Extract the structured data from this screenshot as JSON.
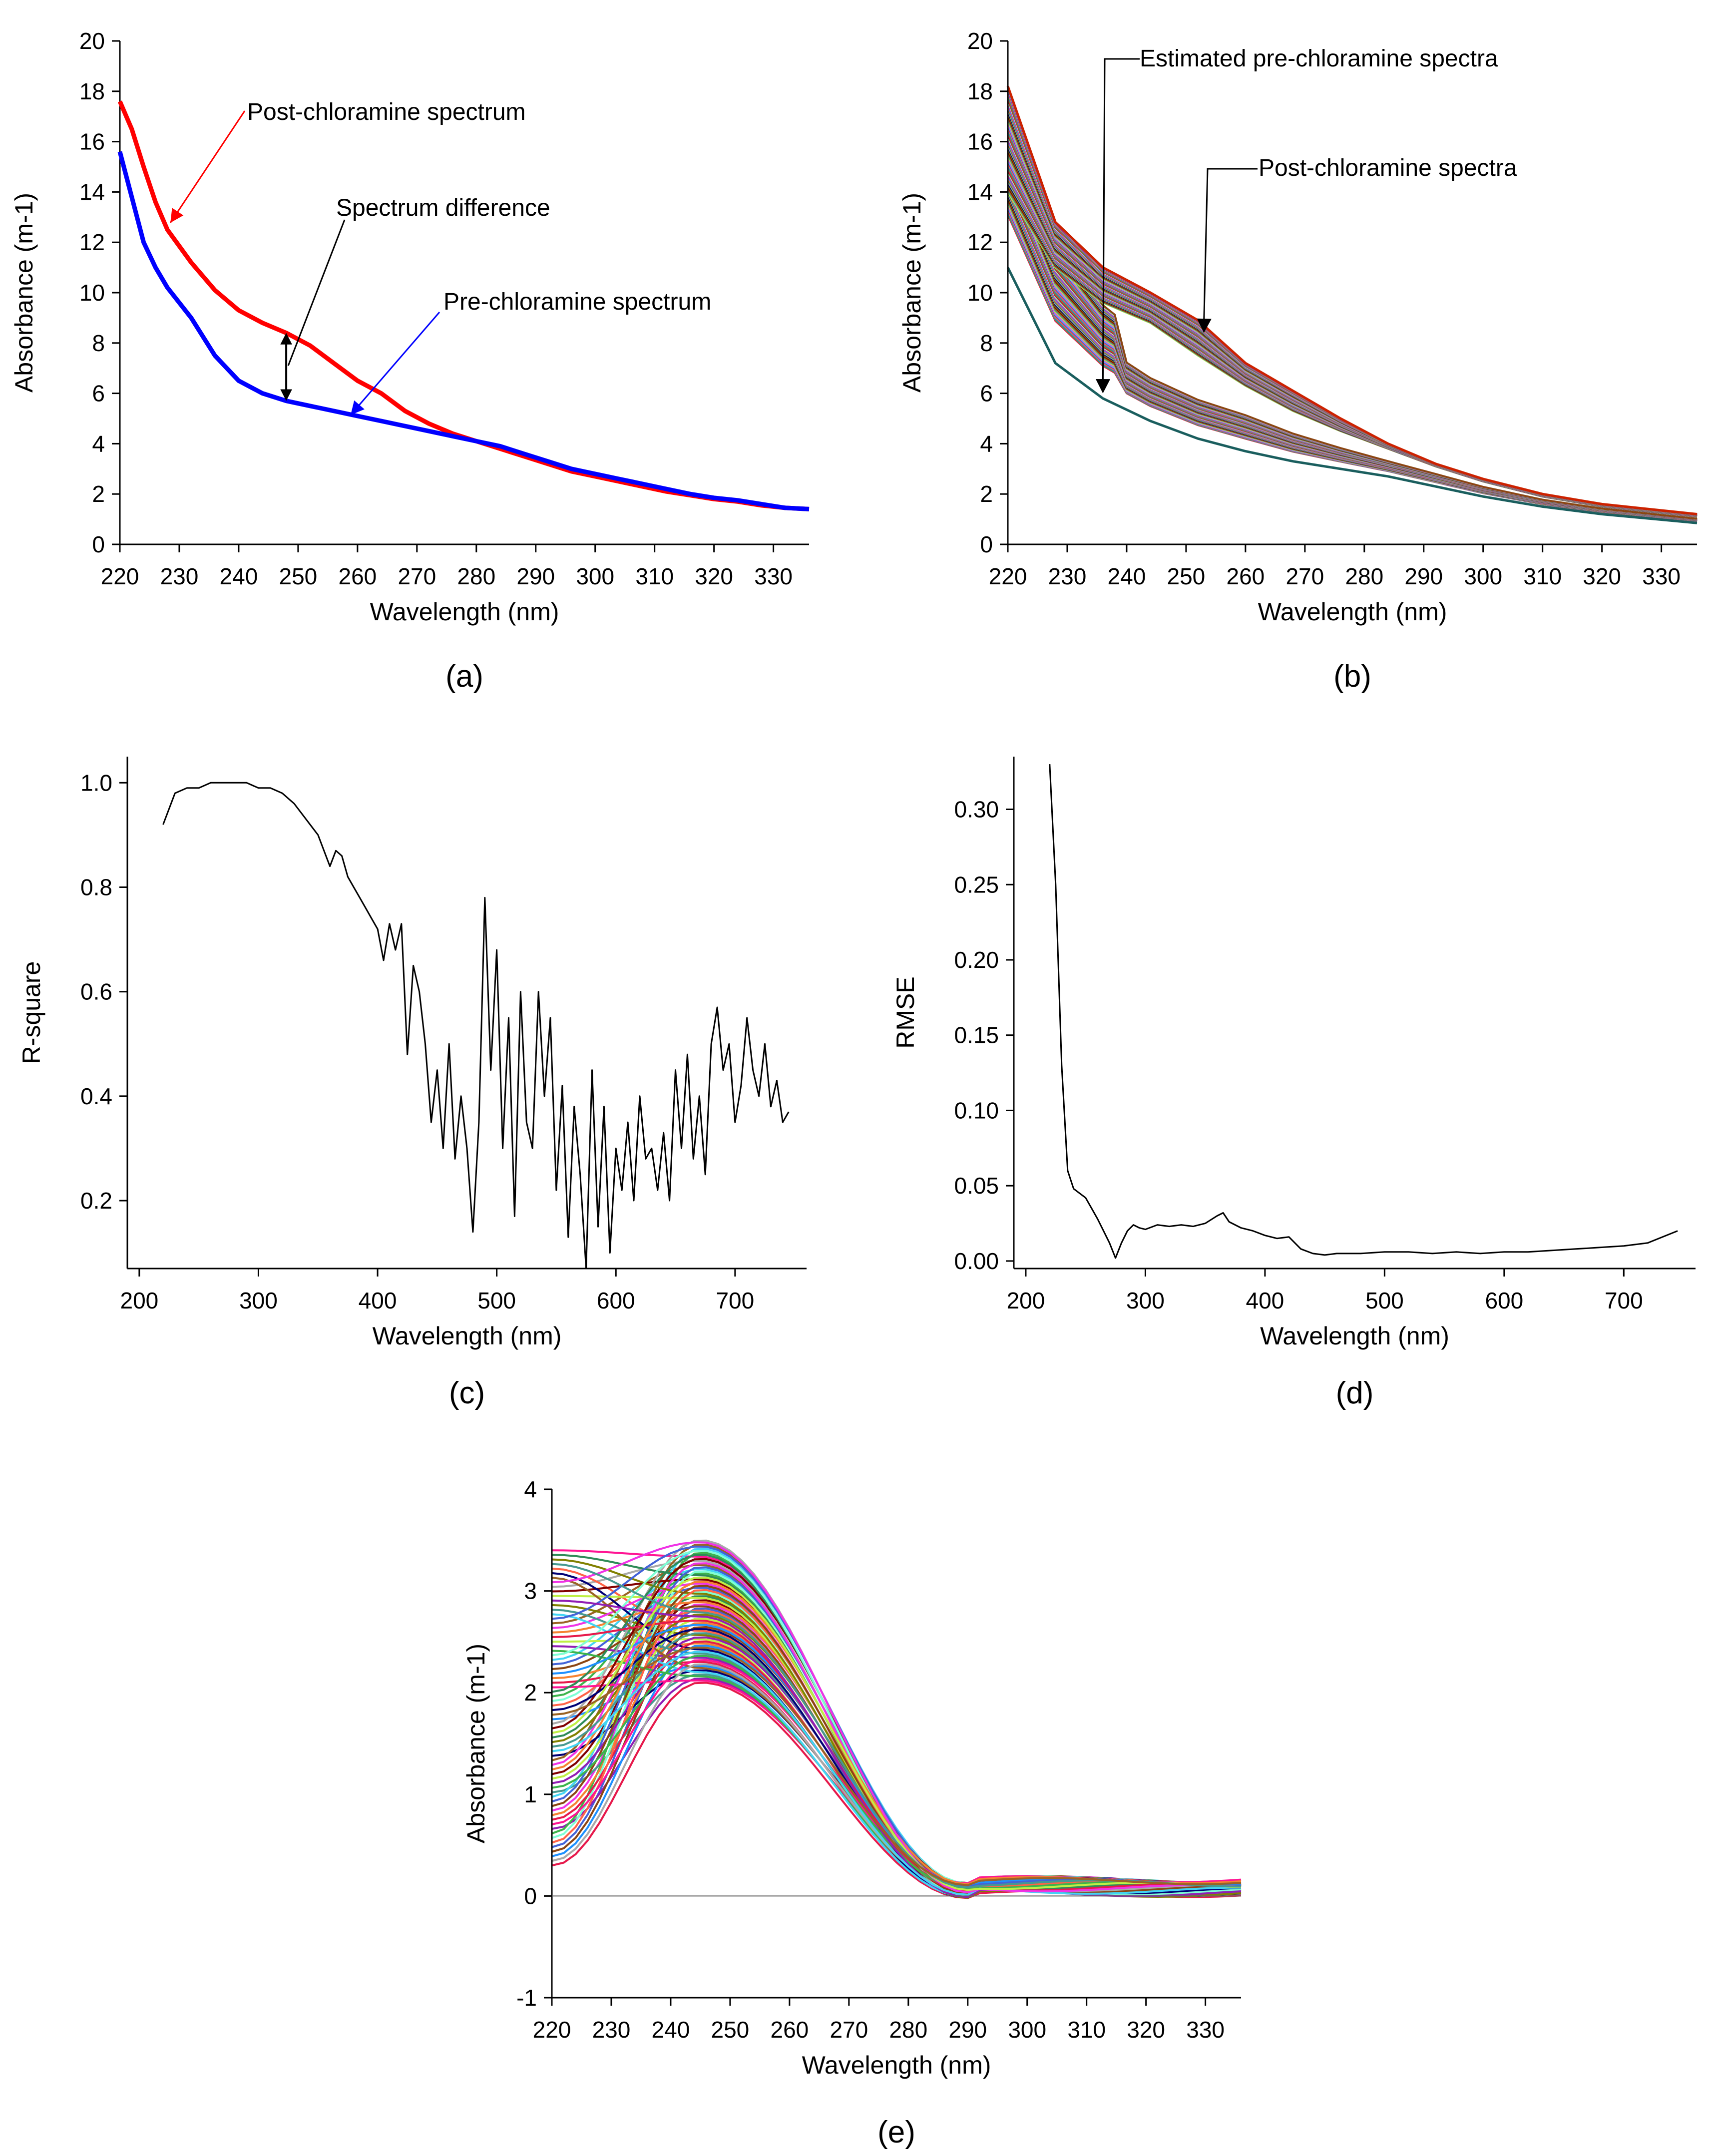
{
  "colors": {
    "post": "#ff0000",
    "pre": "#0000ff",
    "line": "#000000",
    "ann_post": "#ff0000",
    "ann_pre": "#0000ff",
    "palette": [
      "#e6194b",
      "#3cb44b",
      "#4363d8",
      "#f58231",
      "#911eb4",
      "#42d4f4",
      "#f032e6",
      "#bfef45",
      "#469990",
      "#9a6324",
      "#800000",
      "#808000",
      "#000075",
      "#a9a9a9",
      "#2e8b57",
      "#ff6347",
      "#1e90ff",
      "#ff1493",
      "#7fffd4",
      "#8b4513"
    ]
  },
  "chart_data": [
    {
      "id": "a",
      "type": "line",
      "caption": "(a)",
      "xlabel": "Wavelength (nm)",
      "ylabel": "Absorbance (m-1)",
      "xlim": [
        220,
        336
      ],
      "ylim": [
        0,
        20
      ],
      "xticks": [
        220,
        230,
        240,
        250,
        260,
        270,
        280,
        290,
        300,
        310,
        320,
        330
      ],
      "yticks": [
        0,
        2,
        4,
        6,
        8,
        10,
        12,
        14,
        16,
        18,
        20
      ],
      "series": [
        {
          "name": "Post-chloramine spectrum",
          "color": "post",
          "x": [
            220,
            222,
            224,
            226,
            228,
            232,
            236,
            240,
            244,
            248,
            252,
            256,
            260,
            264,
            268,
            272,
            276,
            280,
            284,
            288,
            292,
            296,
            300,
            304,
            308,
            312,
            316,
            320,
            324,
            328,
            332,
            336
          ],
          "y": [
            17.6,
            16.5,
            15.0,
            13.6,
            12.5,
            11.2,
            10.1,
            9.3,
            8.8,
            8.4,
            7.9,
            7.2,
            6.5,
            6.0,
            5.3,
            4.8,
            4.4,
            4.1,
            3.8,
            3.5,
            3.2,
            2.9,
            2.7,
            2.5,
            2.3,
            2.1,
            1.95,
            1.8,
            1.7,
            1.55,
            1.45,
            1.4
          ]
        },
        {
          "name": "Pre-chloramine spectrum",
          "color": "pre",
          "x": [
            220,
            222,
            224,
            226,
            228,
            232,
            236,
            240,
            244,
            248,
            252,
            256,
            260,
            264,
            268,
            272,
            276,
            280,
            284,
            288,
            292,
            296,
            300,
            304,
            308,
            312,
            316,
            320,
            324,
            328,
            332,
            336
          ],
          "y": [
            15.6,
            13.8,
            12.0,
            11.0,
            10.2,
            9.0,
            7.5,
            6.5,
            6.0,
            5.7,
            5.5,
            5.3,
            5.1,
            4.9,
            4.7,
            4.5,
            4.3,
            4.1,
            3.9,
            3.6,
            3.3,
            3.0,
            2.8,
            2.6,
            2.4,
            2.2,
            2.0,
            1.85,
            1.75,
            1.6,
            1.45,
            1.4
          ]
        }
      ],
      "annotations": [
        {
          "text": "Post-chloramine spectrum",
          "target": [
            228,
            12.5
          ],
          "color": "ann_post"
        },
        {
          "text": "Spectrum difference",
          "target": [
            248,
            7.1
          ],
          "color": "line"
        },
        {
          "text": "Pre-chloramine spectrum",
          "target": [
            258,
            5.3
          ],
          "color": "ann_pre"
        }
      ]
    },
    {
      "id": "b",
      "type": "line",
      "caption": "(b)",
      "xlabel": "Wavelength (nm)",
      "ylabel": "Absorbance (m-1)",
      "xlim": [
        220,
        336
      ],
      "ylim": [
        0,
        20
      ],
      "xticks": [
        220,
        230,
        240,
        250,
        260,
        270,
        280,
        290,
        300,
        310,
        320,
        330
      ],
      "yticks": [
        0,
        2,
        4,
        6,
        8,
        10,
        12,
        14,
        16,
        18,
        20
      ],
      "band_x": [
        220,
        228,
        236,
        244,
        252,
        260,
        268,
        276,
        284,
        292,
        300,
        310,
        320,
        336
      ],
      "post_band_low": [
        14.0,
        11.0,
        9.6,
        8.8,
        7.5,
        6.3,
        5.3,
        4.5,
        3.8,
        3.1,
        2.5,
        1.9,
        1.5,
        1.1
      ],
      "post_band_high": [
        18.2,
        12.8,
        11.0,
        10.0,
        8.9,
        7.2,
        6.1,
        5.0,
        4.0,
        3.2,
        2.6,
        2.0,
        1.6,
        1.2
      ],
      "pre_band_low": [
        11.0,
        7.2,
        5.8,
        4.9,
        4.2,
        3.7,
        3.3,
        3.0,
        2.7,
        2.3,
        1.9,
        1.5,
        1.2,
        0.85
      ],
      "pre_band_high": [
        17.0,
        12.0,
        9.5,
        8.0,
        7.0,
        6.3,
        5.3,
        4.5,
        3.8,
        3.2,
        2.6,
        2.0,
        1.6,
        1.15
      ],
      "series_count": 60,
      "annotations": [
        {
          "text": "Estimated pre-chloramine spectra",
          "target": [
            236,
            6.0
          ]
        },
        {
          "text": "Post-chloramine spectra",
          "target": [
            253,
            8.4
          ]
        }
      ]
    },
    {
      "id": "c",
      "type": "line",
      "caption": "(c)",
      "xlabel": "Wavelength (nm)",
      "ylabel": "R-square",
      "xlim": [
        190,
        760
      ],
      "ylim": [
        0.07,
        1.05
      ],
      "xticks": [
        200,
        300,
        400,
        500,
        600,
        700
      ],
      "yticks": [
        0.2,
        0.4,
        0.6,
        0.8,
        1.0
      ],
      "ytick_labels": [
        "0.2",
        "0.4",
        "0.6",
        "0.8",
        "1.0"
      ],
      "series": [
        {
          "name": "R-square",
          "color": "line",
          "x": [
            220,
            230,
            240,
            250,
            260,
            270,
            280,
            290,
            300,
            310,
            320,
            330,
            340,
            350,
            360,
            365,
            370,
            375,
            380,
            385,
            390,
            395,
            400,
            405,
            410,
            415,
            420,
            425,
            430,
            435,
            440,
            445,
            450,
            455,
            460,
            465,
            470,
            475,
            480,
            485,
            490,
            495,
            500,
            505,
            510,
            515,
            520,
            525,
            530,
            535,
            540,
            545,
            550,
            555,
            560,
            565,
            570,
            575,
            580,
            585,
            590,
            595,
            600,
            605,
            610,
            615,
            620,
            625,
            630,
            635,
            640,
            645,
            650,
            655,
            660,
            665,
            670,
            675,
            680,
            685,
            690,
            695,
            700,
            705,
            710,
            715,
            720,
            725,
            730,
            735,
            740,
            745
          ],
          "y": [
            0.92,
            0.98,
            0.99,
            0.99,
            1.0,
            1.0,
            1.0,
            1.0,
            0.99,
            0.99,
            0.98,
            0.96,
            0.93,
            0.9,
            0.84,
            0.87,
            0.86,
            0.82,
            0.8,
            0.78,
            0.76,
            0.74,
            0.72,
            0.66,
            0.73,
            0.68,
            0.73,
            0.48,
            0.65,
            0.6,
            0.5,
            0.35,
            0.45,
            0.3,
            0.5,
            0.28,
            0.4,
            0.3,
            0.14,
            0.35,
            0.78,
            0.45,
            0.68,
            0.3,
            0.55,
            0.17,
            0.6,
            0.35,
            0.3,
            0.6,
            0.4,
            0.55,
            0.22,
            0.42,
            0.13,
            0.38,
            0.25,
            0.07,
            0.45,
            0.15,
            0.38,
            0.1,
            0.3,
            0.22,
            0.35,
            0.2,
            0.4,
            0.28,
            0.3,
            0.22,
            0.33,
            0.2,
            0.45,
            0.3,
            0.48,
            0.28,
            0.4,
            0.25,
            0.5,
            0.57,
            0.45,
            0.5,
            0.35,
            0.42,
            0.55,
            0.45,
            0.4,
            0.5,
            0.38,
            0.43,
            0.35,
            0.37
          ]
        }
      ]
    },
    {
      "id": "d",
      "type": "line",
      "caption": "(d)",
      "xlabel": "Wavelength (nm)",
      "ylabel": "RMSE",
      "xlim": [
        190,
        760
      ],
      "ylim": [
        -0.005,
        0.335
      ],
      "xticks": [
        200,
        300,
        400,
        500,
        600,
        700
      ],
      "yticks": [
        0.0,
        0.05,
        0.1,
        0.15,
        0.2,
        0.25,
        0.3
      ],
      "ytick_labels": [
        "0.00",
        "0.05",
        "0.10",
        "0.15",
        "0.20",
        "0.25",
        "0.30"
      ],
      "series": [
        {
          "name": "RMSE",
          "color": "line",
          "x": [
            220,
            225,
            230,
            235,
            240,
            245,
            250,
            255,
            260,
            265,
            270,
            275,
            280,
            285,
            290,
            295,
            300,
            310,
            320,
            330,
            340,
            350,
            360,
            365,
            370,
            380,
            390,
            400,
            410,
            420,
            430,
            440,
            450,
            460,
            480,
            500,
            520,
            540,
            560,
            580,
            600,
            620,
            640,
            660,
            680,
            700,
            720,
            745
          ],
          "y": [
            0.33,
            0.25,
            0.13,
            0.06,
            0.048,
            0.045,
            0.042,
            0.035,
            0.028,
            0.02,
            0.012,
            0.002,
            0.012,
            0.02,
            0.024,
            0.022,
            0.021,
            0.024,
            0.023,
            0.024,
            0.023,
            0.025,
            0.03,
            0.032,
            0.026,
            0.022,
            0.02,
            0.017,
            0.015,
            0.016,
            0.008,
            0.005,
            0.004,
            0.005,
            0.005,
            0.006,
            0.006,
            0.005,
            0.006,
            0.005,
            0.006,
            0.006,
            0.007,
            0.008,
            0.009,
            0.01,
            0.012,
            0.02
          ]
        }
      ]
    },
    {
      "id": "e",
      "type": "line",
      "caption": "(e)",
      "xlabel": "Wavelength (nm)",
      "ylabel": "Absorbance (m-1)",
      "xlim": [
        220,
        336
      ],
      "ylim": [
        -1,
        4
      ],
      "xticks": [
        220,
        230,
        240,
        250,
        260,
        270,
        280,
        290,
        300,
        310,
        320,
        330
      ],
      "yticks": [
        -1,
        0,
        1,
        2,
        3,
        4
      ],
      "series_count": 70,
      "start_range": [
        0.3,
        3.4
      ],
      "peak_range": [
        2.1,
        3.5
      ],
      "peak_x": 245
    }
  ]
}
